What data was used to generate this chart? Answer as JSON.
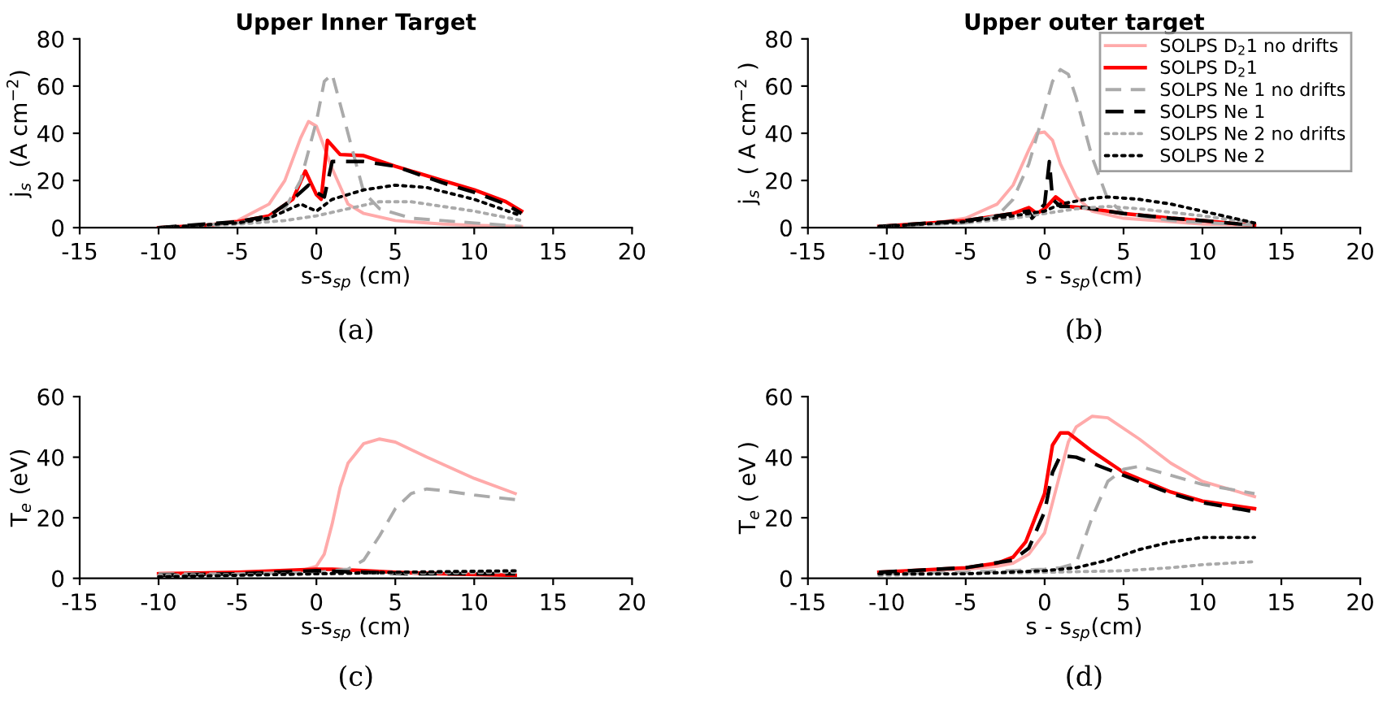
{
  "chart_data": [
    {
      "type": "line",
      "title": "Upper Inner Target",
      "xlabel": "s-s$_{sp}$ (cm)",
      "ylabel": "j$_{s}$  (A cm$^{−2}$)",
      "xlim": [
        -15,
        20
      ],
      "xticks": [
        -15,
        -10,
        -5,
        0,
        5,
        10,
        15,
        20
      ],
      "ylim": [
        0,
        80
      ],
      "yticks": [
        0,
        20,
        40,
        60,
        80
      ],
      "grid": false,
      "legend": false,
      "annotations": [
        "(a)"
      ],
      "series": [
        {
          "color": "#ffaaaa",
          "line_style": "solid",
          "x": [
            -10,
            -7,
            -5,
            -3,
            -2,
            -1,
            -0.5,
            0,
            1,
            2,
            3,
            5,
            8,
            10,
            13
          ],
          "values": [
            0,
            1,
            3,
            10,
            20,
            38,
            45,
            43,
            25,
            10,
            6,
            3,
            1.5,
            1,
            0.5
          ]
        },
        {
          "color": "#ff0000",
          "line_style": "solid",
          "x": [
            -10,
            -7,
            -5,
            -3,
            -1.5,
            -0.7,
            0,
            0.3,
            0.7,
            1.5,
            3,
            5,
            8,
            10,
            12,
            13
          ],
          "values": [
            0,
            1,
            2.5,
            5,
            12,
            24,
            14,
            12,
            37,
            31,
            30.5,
            26,
            20,
            16,
            11,
            7
          ]
        },
        {
          "color": "#aaaaaa",
          "line_style": "dashed",
          "x": [
            -10,
            -5,
            -3,
            -2,
            -1,
            0,
            0.5,
            1,
            2,
            3,
            4,
            6,
            10,
            13
          ],
          "values": [
            0,
            2,
            4,
            8,
            20,
            45,
            62,
            65,
            40,
            15,
            8,
            4,
            2,
            0.5
          ]
        },
        {
          "color": "#000000",
          "line_style": "dashed",
          "x": [
            -10,
            -5,
            -3,
            -1.5,
            -0.5,
            0,
            0.5,
            1,
            3,
            5,
            8,
            10,
            12,
            13
          ],
          "values": [
            0,
            2.5,
            5,
            12,
            18,
            15,
            13,
            28,
            28,
            26,
            19,
            15,
            10,
            6
          ]
        },
        {
          "color": "#aaaaaa",
          "line_style": "dotted",
          "x": [
            -10,
            -5,
            -2,
            0,
            2,
            4,
            6,
            8,
            10,
            13
          ],
          "values": [
            0,
            1.5,
            3,
            5,
            8,
            11,
            11,
            9,
            7,
            3
          ]
        },
        {
          "color": "#000000",
          "line_style": "dotted",
          "x": [
            -10,
            -5,
            -3,
            -1,
            0,
            1,
            3,
            5,
            7,
            10,
            13
          ],
          "values": [
            0,
            2,
            4,
            10,
            7,
            12,
            16,
            18,
            17,
            12,
            5
          ]
        }
      ]
    },
    {
      "type": "line",
      "title": "Upper outer target",
      "xlabel": "s - s$_{sp}$(cm)",
      "ylabel": "j$_{s}$  ( A cm$^{−2}$ )",
      "xlim": [
        -15,
        20
      ],
      "xticks": [
        -15,
        -10,
        -5,
        0,
        5,
        10,
        15,
        20
      ],
      "ylim": [
        0,
        80
      ],
      "yticks": [
        0,
        20,
        40,
        60,
        80
      ],
      "grid": false,
      "legend": "top right",
      "annotations": [
        "(b)"
      ],
      "series": [
        {
          "name": "SOLPS D$_{2}$1 no drifts",
          "color": "#ffaaaa",
          "line_style": "solid",
          "x": [
            -10.5,
            -7,
            -5,
            -3,
            -2,
            -1,
            -0.5,
            0,
            0.5,
            1,
            2,
            3,
            5,
            8,
            10,
            13.3
          ],
          "values": [
            0.5,
            2,
            4,
            10,
            18,
            33,
            40,
            40.5,
            37,
            27,
            13,
            7,
            4,
            2.5,
            1.5,
            1
          ]
        },
        {
          "name": "SOLPS D$_{2}$1",
          "color": "#ff0000",
          "line_style": "solid",
          "x": [
            -10.5,
            -5,
            -2,
            -1,
            -0.5,
            0,
            0.7,
            1.5,
            3,
            5,
            8,
            10,
            13.3
          ],
          "values": [
            0.5,
            3,
            6,
            8.5,
            6,
            8,
            13,
            9,
            8,
            6,
            4,
            3,
            1
          ]
        },
        {
          "name": "SOLPS Ne 1 no drifts",
          "color": "#aaaaaa",
          "line_style": "dashed",
          "x": [
            -10.5,
            -5,
            -3,
            -2,
            -1,
            0,
            0.5,
            1,
            1.5,
            2,
            3,
            4,
            5,
            8,
            13.3
          ],
          "values": [
            0.5,
            2,
            5,
            12,
            27,
            50,
            62,
            67,
            65,
            55,
            30,
            12,
            6,
            3,
            1
          ]
        },
        {
          "name": "SOLPS Ne 1",
          "color": "#000000",
          "line_style": "dashed",
          "x": [
            -10.5,
            -5,
            -2,
            -1,
            -0.8,
            0,
            0.3,
            0.5,
            1,
            2,
            3,
            5,
            8,
            10,
            13.3
          ],
          "values": [
            0.5,
            3,
            6,
            7,
            4,
            10,
            28,
            12,
            9,
            9,
            8,
            6,
            4,
            3,
            1
          ]
        },
        {
          "name": "SOLPS Ne 2 no drifts",
          "color": "#aaaaaa",
          "line_style": "dotted",
          "x": [
            -10.5,
            -5,
            -2,
            0,
            2,
            4,
            6,
            8,
            10,
            13.3
          ],
          "values": [
            0.5,
            2,
            4,
            6,
            8,
            9,
            8,
            6.5,
            5,
            2
          ]
        },
        {
          "name": "SOLPS Ne 2",
          "color": "#000000",
          "line_style": "dotted",
          "x": [
            -10.5,
            -5,
            -2,
            -1,
            0,
            1,
            3,
            4,
            6,
            8,
            10,
            13.3
          ],
          "values": [
            0.5,
            2.5,
            5,
            6,
            7,
            10,
            12.5,
            13,
            12,
            10,
            7,
            2
          ]
        }
      ]
    },
    {
      "type": "line",
      "xlabel": "s-s$_{sp}$ (cm)",
      "ylabel": "T$_{e}$ (eV)",
      "xlim": [
        -15,
        20
      ],
      "xticks": [
        -15,
        -10,
        -5,
        0,
        5,
        10,
        15,
        20
      ],
      "ylim": [
        0,
        60
      ],
      "yticks": [
        0,
        20,
        40,
        60
      ],
      "grid": false,
      "legend": false,
      "annotations": [
        "(c)"
      ],
      "series": [
        {
          "color": "#ffaaaa",
          "line_style": "solid",
          "x": [
            -10,
            -5,
            -1,
            0,
            0.5,
            1,
            1.5,
            2,
            3,
            4,
            5,
            7,
            10,
            12.6
          ],
          "values": [
            1.5,
            1.5,
            2.5,
            4,
            8,
            18,
            30,
            38,
            44.5,
            46,
            45,
            40,
            33,
            28
          ]
        },
        {
          "color": "#ff0000",
          "line_style": "solid",
          "x": [
            -10,
            -5,
            0,
            1,
            3,
            5,
            8,
            12.6
          ],
          "values": [
            1.5,
            2,
            3,
            3,
            2.5,
            2,
            1.5,
            1
          ]
        },
        {
          "color": "#aaaaaa",
          "line_style": "dashed",
          "x": [
            -10,
            -5,
            0,
            2,
            3,
            4,
            5,
            6,
            7,
            8,
            10,
            12.6
          ],
          "values": [
            1.5,
            1.5,
            2,
            3,
            6,
            14,
            23,
            28,
            29.5,
            29,
            27.5,
            26
          ]
        },
        {
          "color": "#000000",
          "line_style": "dashed",
          "x": [
            -10,
            -5,
            0,
            3,
            6,
            12.6
          ],
          "values": [
            1,
            1.5,
            2.5,
            2,
            1.5,
            1.5
          ]
        },
        {
          "color": "#aaaaaa",
          "line_style": "dotted",
          "x": [
            -10,
            0,
            12.6
          ],
          "values": [
            1,
            1.5,
            2
          ]
        },
        {
          "color": "#000000",
          "line_style": "dotted",
          "x": [
            -10,
            -5,
            0,
            5,
            12.6
          ],
          "values": [
            0.5,
            1,
            1.5,
            2,
            2.5
          ]
        }
      ]
    },
    {
      "type": "line",
      "xlabel": "s - s$_{sp}$(cm)",
      "ylabel": "T$_{e}$ ( eV )",
      "xlim": [
        -15,
        20
      ],
      "xticks": [
        -15,
        -10,
        -5,
        0,
        5,
        10,
        15,
        20
      ],
      "ylim": [
        0,
        60
      ],
      "yticks": [
        0,
        20,
        40,
        60
      ],
      "grid": false,
      "legend": false,
      "annotations": [
        "(d)"
      ],
      "series": [
        {
          "color": "#ffaaaa",
          "line_style": "solid",
          "x": [
            -10.5,
            -5,
            -3,
            -2,
            -1,
            0,
            1,
            1.5,
            2,
            3,
            4,
            6,
            8,
            10,
            13.3
          ],
          "values": [
            2,
            3,
            4,
            5,
            8,
            15,
            35,
            45,
            50,
            53.5,
            53,
            46,
            38,
            32,
            27
          ]
        },
        {
          "color": "#ff0000",
          "line_style": "solid",
          "x": [
            -10.5,
            -5,
            -3,
            -2,
            -1.2,
            0,
            0.5,
            1,
            1.5,
            3,
            5,
            8,
            10,
            13.3
          ],
          "values": [
            2,
            3.5,
            5,
            7,
            12,
            28,
            44,
            48,
            48,
            42,
            35,
            28.5,
            25.5,
            23
          ]
        },
        {
          "color": "#aaaaaa",
          "line_style": "dashed",
          "x": [
            -10.5,
            -5,
            0,
            1,
            2,
            3,
            4,
            5,
            6,
            8,
            10,
            13.3
          ],
          "values": [
            1.5,
            2,
            3,
            3.5,
            5,
            20,
            32,
            36,
            37,
            34,
            31,
            28
          ]
        },
        {
          "color": "#000000",
          "line_style": "dashed",
          "x": [
            -10.5,
            -5,
            -2,
            -1,
            0,
            0.5,
            1,
            2,
            4,
            6,
            8,
            10,
            13.3
          ],
          "values": [
            2,
            3.5,
            6,
            10,
            22,
            35,
            40.5,
            40,
            36,
            32,
            28,
            25,
            22
          ]
        },
        {
          "color": "#aaaaaa",
          "line_style": "dotted",
          "x": [
            -10.5,
            -5,
            0,
            5,
            8,
            10,
            13.3
          ],
          "values": [
            1,
            1.5,
            2,
            2.5,
            3.5,
            4.5,
            5.5
          ]
        },
        {
          "color": "#000000",
          "line_style": "dotted",
          "x": [
            -10.5,
            -5,
            0,
            2,
            4,
            6,
            8,
            10,
            13.3
          ],
          "values": [
            1.5,
            1.5,
            2.5,
            3.5,
            6,
            9.5,
            12,
            13.5,
            13.5
          ]
        }
      ]
    }
  ]
}
